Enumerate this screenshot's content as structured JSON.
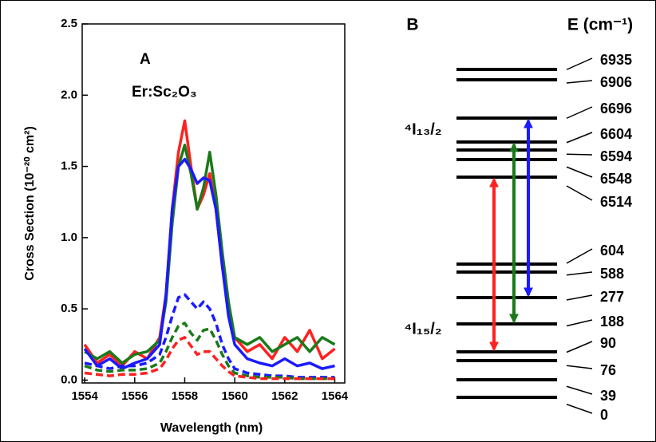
{
  "chart_data": {
    "type": "line",
    "annotations": [
      "A",
      "Er:Sc₂O₃"
    ],
    "x_label": "Wavelength (nm)",
    "y_label": "Cross Section (10⁻²⁰ cm²)",
    "x": [
      1554,
      1554.5,
      1555,
      1555.5,
      1556,
      1556.5,
      1557,
      1557.25,
      1557.5,
      1557.75,
      1558,
      1558.25,
      1558.5,
      1558.75,
      1559,
      1559.25,
      1559.5,
      1559.75,
      1560,
      1560.5,
      1561,
      1561.5,
      1562,
      1562.5,
      1563,
      1563.5,
      1564
    ],
    "series": [
      {
        "color": "#ff2020",
        "linestyle": "solid",
        "values": [
          0.25,
          0.12,
          0.18,
          0.1,
          0.2,
          0.15,
          0.3,
          0.6,
          1.2,
          1.6,
          1.82,
          1.5,
          1.2,
          1.3,
          1.45,
          1.2,
          0.8,
          0.5,
          0.3,
          0.2,
          0.25,
          0.15,
          0.3,
          0.2,
          0.35,
          0.15,
          0.22
        ]
      },
      {
        "color": "#1a7a1a",
        "linestyle": "solid",
        "values": [
          0.2,
          0.15,
          0.2,
          0.12,
          0.18,
          0.2,
          0.28,
          0.55,
          1.1,
          1.5,
          1.65,
          1.45,
          1.2,
          1.35,
          1.6,
          1.3,
          0.9,
          0.55,
          0.3,
          0.25,
          0.3,
          0.2,
          0.25,
          0.3,
          0.2,
          0.3,
          0.25
        ]
      },
      {
        "color": "#1a1aff",
        "linestyle": "solid",
        "values": [
          0.22,
          0.1,
          0.15,
          0.08,
          0.12,
          0.15,
          0.25,
          0.6,
          1.2,
          1.5,
          1.55,
          1.48,
          1.38,
          1.42,
          1.4,
          1.2,
          0.8,
          0.45,
          0.25,
          0.15,
          0.12,
          0.1,
          0.15,
          0.1,
          0.12,
          0.08,
          0.1
        ]
      },
      {
        "color": "#1a1aff",
        "linestyle": "dashed",
        "values": [
          0.12,
          0.1,
          0.08,
          0.1,
          0.1,
          0.12,
          0.18,
          0.3,
          0.45,
          0.58,
          0.6,
          0.55,
          0.5,
          0.55,
          0.5,
          0.4,
          0.25,
          0.15,
          0.08,
          0.05,
          0.04,
          0.03,
          0.03,
          0.02,
          0.02,
          0.02,
          0.02
        ]
      },
      {
        "color": "#1a7a1a",
        "linestyle": "dashed",
        "values": [
          0.1,
          0.07,
          0.06,
          0.07,
          0.07,
          0.08,
          0.12,
          0.2,
          0.3,
          0.38,
          0.4,
          0.33,
          0.28,
          0.35,
          0.36,
          0.28,
          0.18,
          0.1,
          0.05,
          0.03,
          0.02,
          0.02,
          0.02,
          0.01,
          0.01,
          0.01,
          0.01
        ]
      },
      {
        "color": "#ff2020",
        "linestyle": "dashed",
        "values": [
          0.05,
          0.04,
          0.03,
          0.04,
          0.04,
          0.05,
          0.08,
          0.14,
          0.22,
          0.28,
          0.3,
          0.24,
          0.18,
          0.2,
          0.2,
          0.15,
          0.1,
          0.06,
          0.03,
          0.02,
          0.01,
          0.01,
          0.01,
          0.01,
          0.01,
          0.01,
          0.01
        ]
      }
    ],
    "xlim": [
      1553.9,
      1564.4
    ],
    "xticks": [
      1554,
      1556,
      1558,
      1560,
      1562,
      1564
    ],
    "ylim": [
      -0.02,
      2.5
    ],
    "yticks": [
      {
        "value": 0,
        "label": "0.0"
      },
      0.5,
      {
        "value": 1,
        "label": "1.0"
      },
      1.5,
      {
        "value": 2,
        "label": "2.0"
      },
      2.5
    ]
  },
  "diagram": {
    "panel_label": "B",
    "energy_header": "E (cm⁻¹)",
    "manifolds": [
      "⁴I₁₃/₂",
      "⁴I₁₅/₂"
    ],
    "levels": [
      "6935",
      "6906",
      "6696",
      "6604",
      "6594",
      "6548",
      "6514",
      "604",
      "588",
      "277",
      "188",
      "90",
      "76",
      "39",
      "0"
    ]
  }
}
